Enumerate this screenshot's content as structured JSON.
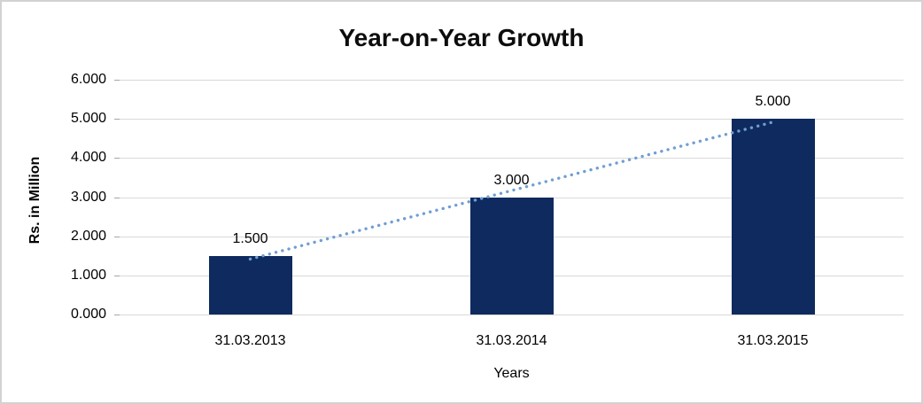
{
  "chart_data": {
    "type": "bar",
    "title": "Year-on-Year Growth",
    "xlabel": "Years",
    "ylabel": "Rs. in Million",
    "categories": [
      "31.03.2013",
      "31.03.2014",
      "31.03.2015"
    ],
    "values": [
      1.5,
      3.0,
      5.0
    ],
    "data_labels": [
      "1.500",
      "3.000",
      "5.000"
    ],
    "yticks": [
      {
        "value": 0,
        "label": "0.000"
      },
      {
        "value": 1,
        "label": "1.000"
      },
      {
        "value": 2,
        "label": "2.000"
      },
      {
        "value": 3,
        "label": "3.000"
      },
      {
        "value": 4,
        "label": "4.000"
      },
      {
        "value": 5,
        "label": "5.000"
      },
      {
        "value": 6,
        "label": "6.000"
      }
    ],
    "ylim": [
      0,
      6
    ],
    "grid": "horizontal",
    "legend": "none",
    "colors": {
      "bar": "#0f2a5e",
      "trendline": "#6f9ed4",
      "gridline": "#d9d9d9",
      "tickmark": "#a6a6a6",
      "frame_border": "#d2d2d2"
    },
    "trendline": {
      "type": "linear",
      "style": "dotted",
      "start_value": 1.417,
      "end_value": 4.917
    }
  }
}
